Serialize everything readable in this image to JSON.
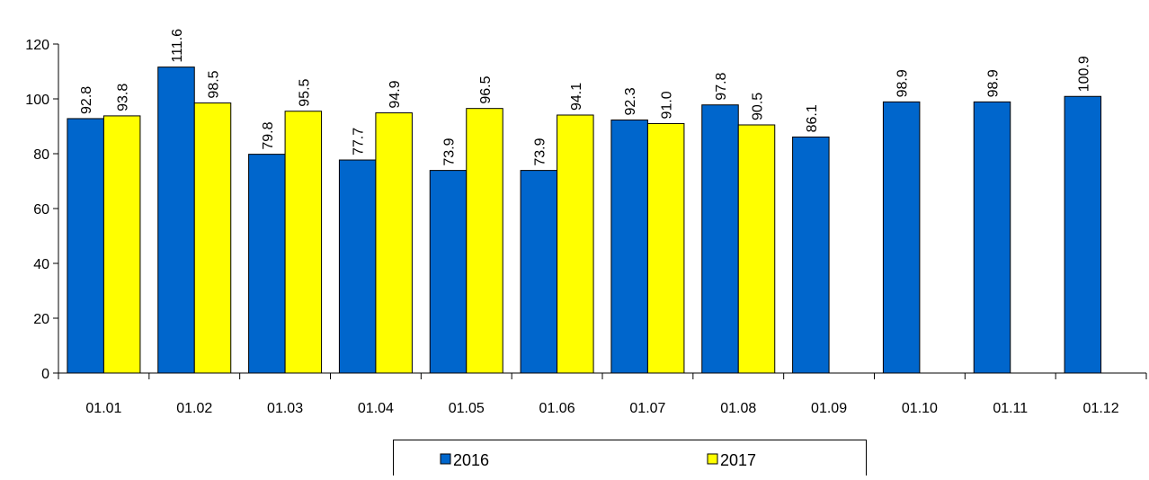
{
  "chart_data": {
    "type": "bar",
    "categories": [
      "01.01",
      "01.02",
      "01.03",
      "01.04",
      "01.05",
      "01.06",
      "01.07",
      "01.08",
      "01.09",
      "01.10",
      "01.11",
      "01.12"
    ],
    "series": [
      {
        "name": "2016",
        "color": "#0066cc",
        "values": [
          92.8,
          111.6,
          79.8,
          77.7,
          73.9,
          73.9,
          92.3,
          97.8,
          86.1,
          98.9,
          98.9,
          100.9
        ],
        "value_labels": [
          "92.8",
          "111.6",
          "79.8",
          "77.7",
          "73.9",
          "73.9",
          "92.3",
          "97.8",
          "86.1",
          "98.9",
          "98.9",
          "100.9"
        ]
      },
      {
        "name": "2017",
        "color": "#ffff00",
        "values": [
          93.8,
          98.5,
          95.5,
          94.9,
          96.5,
          94.1,
          91,
          90.5,
          null,
          null,
          null,
          null
        ],
        "value_labels": [
          "93.8",
          "98.5",
          "95.5",
          "94.9",
          "96.5",
          "94.1",
          "91.0",
          "90.5",
          null,
          null,
          null,
          null
        ]
      }
    ],
    "ylim": [
      0,
      120
    ],
    "yticks": [
      0,
      20,
      40,
      60,
      80,
      100,
      120
    ],
    "grid": false,
    "legend": "bottom"
  }
}
